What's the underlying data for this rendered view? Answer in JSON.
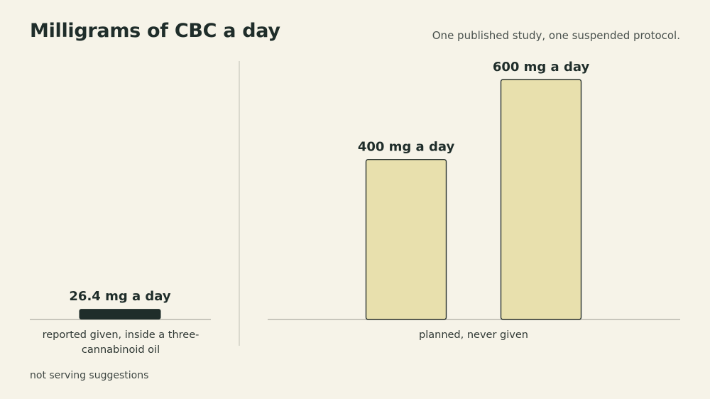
{
  "title": "Milligrams of CBC a day",
  "subtitle": "One published study, one suspended protocol.",
  "footnote": "not serving suggestions",
  "colors": {
    "background": "#f6f3e8",
    "given_bar": "#1f2d2a",
    "planned_bar": "#e8e0ad",
    "planned_bar_stroke": "#2a332f",
    "baseline": "#b9b8ad",
    "divider": "#c9c8bd"
  },
  "chart_data": [
    {
      "type": "bar",
      "category_label": "reported given, inside a three-cannabinoid oil",
      "values": [
        26.4
      ],
      "labels": [
        "26.4 mg a day"
      ],
      "unit": "mg a day",
      "ylim": [
        0,
        660
      ]
    },
    {
      "type": "bar",
      "category_label": "planned, never given",
      "values": [
        400,
        600
      ],
      "labels": [
        "400 mg a day",
        "600 mg a day"
      ],
      "unit": "mg a day",
      "ylim": [
        0,
        660
      ]
    }
  ]
}
